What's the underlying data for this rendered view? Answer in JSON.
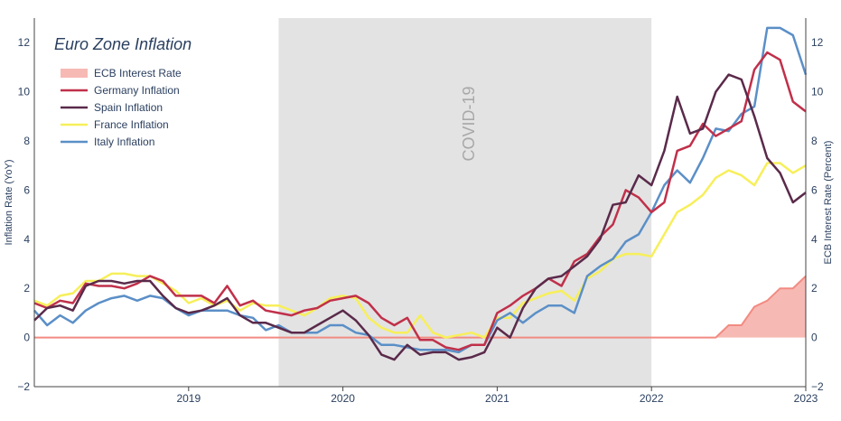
{
  "chart_data": {
    "type": "line",
    "title": "Euro Zone Inflation",
    "ylabel": "Inflation Rate (YoY)",
    "y2label": "ECB Interest Rate (Percent)",
    "ylim": [
      -2,
      13
    ],
    "y2lim": [
      -2,
      13
    ],
    "yticks": [
      -2,
      0,
      2,
      4,
      6,
      8,
      10,
      12
    ],
    "xlim": [
      "2018-01",
      "2023-01"
    ],
    "xticks": [
      "2019",
      "2020",
      "2021",
      "2022",
      "2023"
    ],
    "grid": false,
    "legend_position": "top-left",
    "shaded_region": {
      "label": "COVID-19",
      "start": "2019-08",
      "end": "2022-01",
      "color": "#e3e3e3"
    },
    "months": [
      "2018-01",
      "2018-02",
      "2018-03",
      "2018-04",
      "2018-05",
      "2018-06",
      "2018-07",
      "2018-08",
      "2018-09",
      "2018-10",
      "2018-11",
      "2018-12",
      "2019-01",
      "2019-02",
      "2019-03",
      "2019-04",
      "2019-05",
      "2019-06",
      "2019-07",
      "2019-08",
      "2019-09",
      "2019-10",
      "2019-11",
      "2019-12",
      "2020-01",
      "2020-02",
      "2020-03",
      "2020-04",
      "2020-05",
      "2020-06",
      "2020-07",
      "2020-08",
      "2020-09",
      "2020-10",
      "2020-11",
      "2020-12",
      "2021-01",
      "2021-02",
      "2021-03",
      "2021-04",
      "2021-05",
      "2021-06",
      "2021-07",
      "2021-08",
      "2021-09",
      "2021-10",
      "2021-11",
      "2021-12",
      "2022-01",
      "2022-02",
      "2022-03",
      "2022-04",
      "2022-05",
      "2022-06",
      "2022-07",
      "2022-08",
      "2022-09",
      "2022-10",
      "2022-11",
      "2022-12",
      "2023-01"
    ],
    "series": [
      {
        "name": "ECB Interest Rate",
        "kind": "area",
        "color": "#f28b82",
        "values": [
          0,
          0,
          0,
          0,
          0,
          0,
          0,
          0,
          0,
          0,
          0,
          0,
          0,
          0,
          0,
          0,
          0,
          0,
          0,
          0,
          0,
          0,
          0,
          0,
          0,
          0,
          0,
          0,
          0,
          0,
          0,
          0,
          0,
          0,
          0,
          0,
          0,
          0,
          0,
          0,
          0,
          0,
          0,
          0,
          0,
          0,
          0,
          0,
          0,
          0,
          0,
          0,
          0,
          0,
          0.5,
          0.5,
          1.25,
          1.5,
          2,
          2,
          2.5
        ]
      },
      {
        "name": "Germany Inflation",
        "kind": "line",
        "color": "#c0304a",
        "values": [
          1.4,
          1.2,
          1.5,
          1.4,
          2.2,
          2.1,
          2.1,
          2.0,
          2.2,
          2.5,
          2.3,
          1.7,
          1.7,
          1.7,
          1.4,
          2.1,
          1.3,
          1.5,
          1.1,
          1.0,
          0.9,
          1.1,
          1.2,
          1.5,
          1.6,
          1.7,
          1.4,
          0.8,
          0.5,
          0.8,
          -0.1,
          -0.1,
          -0.4,
          -0.5,
          -0.3,
          -0.3,
          1.0,
          1.3,
          1.7,
          2.0,
          2.4,
          2.1,
          3.1,
          3.4,
          4.1,
          4.6,
          6.0,
          5.7,
          5.1,
          5.5,
          7.6,
          7.8,
          8.7,
          8.2,
          8.5,
          8.8,
          10.9,
          11.6,
          11.3,
          9.6,
          9.2
        ]
      },
      {
        "name": "Spain Inflation",
        "kind": "line",
        "color": "#5a2a4a",
        "values": [
          0.7,
          1.2,
          1.3,
          1.1,
          2.1,
          2.3,
          2.3,
          2.2,
          2.3,
          2.3,
          1.7,
          1.2,
          1.0,
          1.1,
          1.3,
          1.6,
          0.9,
          0.6,
          0.6,
          0.4,
          0.2,
          0.2,
          0.5,
          0.8,
          1.1,
          0.7,
          0.1,
          -0.7,
          -0.9,
          -0.3,
          -0.7,
          -0.6,
          -0.6,
          -0.9,
          -0.8,
          -0.6,
          0.4,
          0.0,
          1.2,
          2.0,
          2.4,
          2.5,
          2.9,
          3.3,
          4.0,
          5.4,
          5.5,
          6.6,
          6.2,
          7.6,
          9.8,
          8.3,
          8.5,
          10.0,
          10.7,
          10.5,
          9.0,
          7.3,
          6.7,
          5.5,
          5.9
        ]
      },
      {
        "name": "France Inflation",
        "kind": "line",
        "color": "#f7ef5a",
        "values": [
          1.5,
          1.3,
          1.7,
          1.8,
          2.3,
          2.3,
          2.6,
          2.6,
          2.5,
          2.5,
          2.2,
          1.9,
          1.4,
          1.6,
          1.3,
          1.5,
          1.1,
          1.4,
          1.3,
          1.3,
          1.1,
          0.9,
          1.2,
          1.6,
          1.7,
          1.6,
          0.8,
          0.4,
          0.2,
          0.2,
          0.9,
          0.2,
          0.0,
          0.1,
          0.2,
          0.0,
          0.8,
          0.8,
          1.4,
          1.6,
          1.8,
          1.9,
          1.5,
          2.4,
          2.7,
          3.2,
          3.4,
          3.4,
          3.3,
          4.2,
          5.1,
          5.4,
          5.8,
          6.5,
          6.8,
          6.6,
          6.2,
          7.1,
          7.1,
          6.7,
          7.0
        ]
      },
      {
        "name": "Italy Inflation",
        "kind": "line",
        "color": "#5b8fc7",
        "values": [
          1.1,
          0.5,
          0.9,
          0.6,
          1.1,
          1.4,
          1.6,
          1.7,
          1.5,
          1.7,
          1.6,
          1.2,
          0.9,
          1.1,
          1.1,
          1.1,
          0.9,
          0.8,
          0.3,
          0.5,
          0.2,
          0.2,
          0.2,
          0.5,
          0.5,
          0.2,
          0.1,
          -0.3,
          -0.3,
          -0.4,
          -0.5,
          -0.5,
          -0.5,
          -0.6,
          -0.3,
          -0.3,
          0.7,
          1.0,
          0.6,
          1.0,
          1.3,
          1.3,
          1.0,
          2.5,
          2.9,
          3.2,
          3.9,
          4.2,
          5.1,
          6.2,
          6.8,
          6.3,
          7.3,
          8.5,
          8.4,
          9.1,
          9.4,
          12.6,
          12.6,
          12.3,
          10.7
        ]
      }
    ]
  }
}
